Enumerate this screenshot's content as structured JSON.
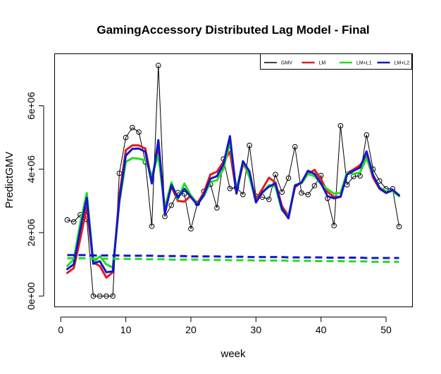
{
  "chart_data": {
    "type": "line",
    "title": "GamingAccessory Distributed Lag Model - Final",
    "xlabel": "week",
    "ylabel": "PredictGMV",
    "xlim": [
      -1,
      54
    ],
    "ylim": [
      -330000,
      7650000
    ],
    "x_ticks": [
      0,
      10,
      20,
      30,
      40,
      50
    ],
    "x_tick_labels": [
      "0",
      "10",
      "20",
      "30",
      "40",
      "50"
    ],
    "y_ticks": [
      0,
      2000000,
      4000000,
      6000000
    ],
    "y_tick_labels": [
      "0e+00",
      "2e+06",
      "4e+06",
      "6e+06"
    ],
    "legend_position": "top-right",
    "legend": [
      {
        "label": "GMV",
        "color": "#000000"
      },
      {
        "label": "LM",
        "color": "#DF1B1B"
      },
      {
        "label": "LM+L1",
        "color": "#22DD22"
      },
      {
        "label": "LM+L2",
        "color": "#1515CC"
      }
    ],
    "x": [
      1,
      2,
      3,
      4,
      5,
      6,
      7,
      8,
      9,
      10,
      11,
      12,
      13,
      14,
      15,
      16,
      17,
      18,
      19,
      20,
      21,
      22,
      23,
      24,
      25,
      26,
      27,
      28,
      29,
      30,
      31,
      32,
      33,
      34,
      35,
      36,
      37,
      38,
      39,
      40,
      41,
      42,
      43,
      44,
      45,
      46,
      47,
      48,
      49,
      50,
      51,
      52
    ],
    "series": [
      {
        "name": "GMV",
        "color": "#000000",
        "style": "line-points",
        "values": [
          2400000,
          2340000,
          2560000,
          2420000,
          0,
          0,
          0,
          0,
          3870000,
          5000000,
          5310000,
          5170000,
          4230000,
          2200000,
          7270000,
          2510000,
          2860000,
          3260000,
          3220000,
          2120000,
          2920000,
          3300000,
          3520000,
          2780000,
          4320000,
          3390000,
          3420000,
          3200000,
          4750000,
          3150000,
          3120000,
          3050000,
          3830000,
          3280000,
          3720000,
          4710000,
          3250000,
          3200000,
          3480000,
          3800000,
          3080000,
          2220000,
          5370000,
          3510000,
          3770000,
          3790000,
          5080000,
          4000000,
          3630000,
          3380000,
          3380000,
          2190000
        ]
      },
      {
        "name": "LM",
        "color": "#DF1B1B",
        "style": "solid",
        "values": [
          730000,
          880000,
          1800000,
          2800000,
          1050000,
          950000,
          580000,
          750000,
          3150000,
          4600000,
          4750000,
          4750000,
          4650000,
          3580000,
          4750000,
          2750000,
          3450000,
          3000000,
          2980000,
          3170000,
          2920000,
          3270000,
          3830000,
          3920000,
          4230000,
          4550000,
          3270000,
          4170000,
          3830000,
          3050000,
          3380000,
          3730000,
          3580000,
          2830000,
          2530000,
          3430000,
          3580000,
          3850000,
          3980000,
          3680000,
          3280000,
          3130000,
          3130000,
          3880000,
          3990000,
          4130000,
          4380000,
          3730000,
          3380000,
          3250000,
          3330000,
          3150000
        ]
      },
      {
        "name": "LM+L1",
        "color": "#22DD22",
        "style": "solid",
        "values": [
          950000,
          1150000,
          2300000,
          3250000,
          1050000,
          1250000,
          1000000,
          900000,
          2950000,
          4230000,
          4350000,
          4330000,
          4280000,
          3800000,
          4430000,
          2780000,
          3580000,
          3050000,
          3550000,
          3170000,
          2900000,
          3150000,
          3600000,
          3650000,
          4000000,
          4850000,
          3350000,
          4250000,
          3750000,
          2980000,
          3250000,
          3500000,
          3450000,
          2700000,
          2500000,
          3500000,
          3550000,
          3850000,
          3780000,
          3530000,
          3370000,
          3230000,
          3250000,
          3900000,
          3850000,
          3900000,
          4350000,
          3820000,
          3420000,
          3300000,
          3300000,
          3150000
        ]
      },
      {
        "name": "LM+L2",
        "color": "#1515CC",
        "style": "solid",
        "values": [
          850000,
          1000000,
          2100000,
          3100000,
          1020000,
          1100000,
          750000,
          780000,
          3020000,
          4430000,
          4640000,
          4650000,
          4550000,
          3550000,
          4920000,
          2600000,
          3500000,
          3100000,
          3380000,
          3120000,
          2870000,
          3200000,
          3700000,
          3780000,
          4150000,
          5040000,
          3230000,
          4250000,
          3930000,
          2950000,
          3280000,
          3450000,
          3550000,
          2750000,
          2450000,
          3480000,
          3580000,
          3950000,
          3850000,
          3550000,
          3150000,
          3080000,
          3130000,
          3830000,
          3950000,
          4050000,
          4560000,
          3810000,
          3400000,
          3250000,
          3350000,
          3180000
        ]
      },
      {
        "name": "LM+L1",
        "color": "#22DD22",
        "style": "dashed",
        "values": [
          1190000,
          1190000,
          1190000,
          1190000,
          1180000,
          1180000,
          1180000,
          1180000,
          1170000,
          1170000,
          1170000,
          1170000,
          1160000,
          1160000,
          1160000,
          1160000,
          1150000,
          1150000,
          1150000,
          1150000,
          1150000,
          1140000,
          1140000,
          1140000,
          1140000,
          1130000,
          1130000,
          1130000,
          1130000,
          1120000,
          1120000,
          1120000,
          1120000,
          1120000,
          1110000,
          1110000,
          1110000,
          1110000,
          1100000,
          1100000,
          1100000,
          1100000,
          1100000,
          1090000,
          1090000,
          1090000,
          1090000,
          1080000,
          1080000,
          1080000,
          1080000,
          1080000
        ]
      },
      {
        "name": "LM+L2",
        "color": "#1515CC",
        "style": "dashed",
        "values": [
          1290000,
          1290000,
          1290000,
          1290000,
          1280000,
          1280000,
          1280000,
          1280000,
          1280000,
          1270000,
          1270000,
          1270000,
          1270000,
          1270000,
          1260000,
          1260000,
          1260000,
          1260000,
          1260000,
          1250000,
          1250000,
          1250000,
          1250000,
          1250000,
          1240000,
          1240000,
          1240000,
          1240000,
          1230000,
          1230000,
          1230000,
          1230000,
          1230000,
          1230000,
          1220000,
          1220000,
          1220000,
          1220000,
          1220000,
          1220000,
          1210000,
          1210000,
          1210000,
          1210000,
          1210000,
          1210000,
          1200000,
          1200000,
          1200000,
          1200000,
          1200000,
          1200000
        ]
      }
    ]
  }
}
